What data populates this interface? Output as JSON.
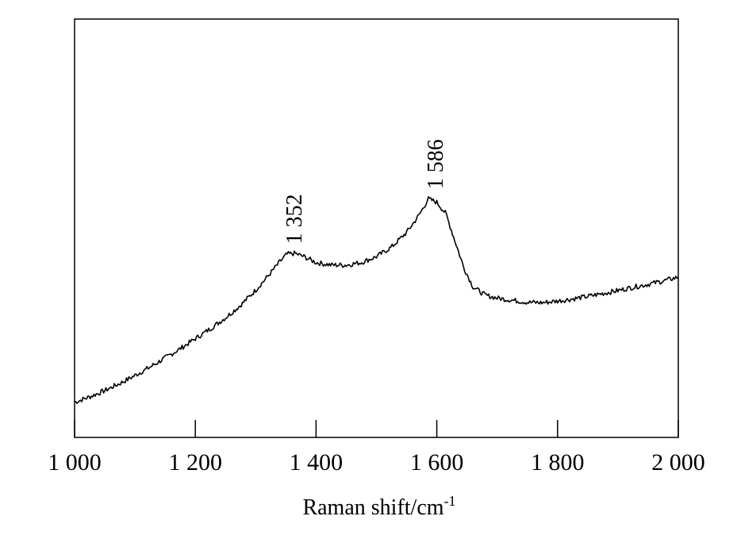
{
  "chart_data": {
    "type": "line",
    "title": "",
    "xlabel": "Raman shift/cm",
    "xlabel_superscript": "-1",
    "ylabel": "",
    "xlim": [
      1000,
      2000
    ],
    "ylim": [
      0,
      1
    ],
    "x_ticks": [
      1000,
      1200,
      1400,
      1600,
      1800,
      2000
    ],
    "x_tick_labels": [
      "1 000",
      "1 200",
      "1 400",
      "1 600",
      "1 800",
      "2 000"
    ],
    "y_ticks_shown": false,
    "grid": false,
    "legend": "none",
    "line_color": "#000000",
    "annotations": [
      {
        "text": "1 352",
        "x": 1352,
        "y": 0.447
      },
      {
        "text": "1 586",
        "x": 1586,
        "y": 0.578
      }
    ],
    "series": [
      {
        "x": [
          1000,
          1025,
          1050,
          1075,
          1100,
          1125,
          1150,
          1175,
          1200,
          1225,
          1250,
          1275,
          1300,
          1320,
          1340,
          1352,
          1365,
          1380,
          1400,
          1425,
          1450,
          1475,
          1500,
          1525,
          1550,
          1570,
          1586,
          1600,
          1615,
          1630,
          1645,
          1660,
          1680,
          1700,
          1725,
          1750,
          1775,
          1800,
          1825,
          1850,
          1875,
          1900,
          1925,
          1950,
          1975,
          2000
        ],
        "y": [
          0.084,
          0.097,
          0.112,
          0.129,
          0.148,
          0.168,
          0.19,
          0.212,
          0.236,
          0.26,
          0.286,
          0.316,
          0.352,
          0.385,
          0.42,
          0.438,
          0.44,
          0.432,
          0.418,
          0.412,
          0.412,
          0.418,
          0.432,
          0.455,
          0.49,
          0.53,
          0.57,
          0.562,
          0.535,
          0.47,
          0.405,
          0.36,
          0.34,
          0.333,
          0.328,
          0.323,
          0.322,
          0.326,
          0.331,
          0.337,
          0.344,
          0.351,
          0.359,
          0.366,
          0.374,
          0.383
        ]
      }
    ]
  }
}
